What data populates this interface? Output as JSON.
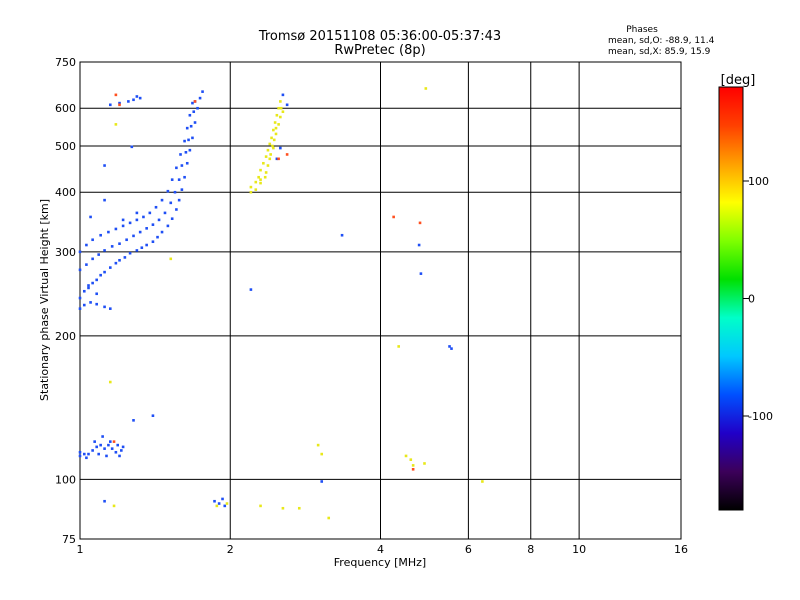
{
  "chart_data": {
    "type": "scatter",
    "title": "Tromsø 20151108 05:36:00-05:37:43",
    "subtitle": "RwPretec (8p)",
    "xlabel": "Frequency [MHz]",
    "ylabel": "Stationary phase Virtual Height [km]",
    "x_scale": "log",
    "y_scale": "log",
    "xlim": [
      1,
      16
    ],
    "ylim": [
      75,
      750
    ],
    "x_ticks": [
      1,
      2,
      4,
      6,
      8,
      10,
      16
    ],
    "y_ticks": [
      75,
      100,
      200,
      300,
      400,
      500,
      600,
      750
    ],
    "x_gridlines": [
      2,
      4,
      6,
      8,
      10
    ],
    "y_gridlines": [
      100,
      200,
      300,
      400,
      500,
      600
    ],
    "grid": true,
    "stats": {
      "header": "Phases",
      "line1": "mean, sd,O: -88.9, 11.4",
      "line2": "mean, sd,X:  85.9, 15.9"
    },
    "colorbar": {
      "label": "[deg]",
      "range": [
        -180,
        180
      ],
      "ticks": [
        -100,
        0,
        100
      ],
      "colors": [
        "#000000",
        "#3c005a",
        "#2000c8",
        "#0050ff",
        "#00c8ff",
        "#00ffc8",
        "#00e000",
        "#7fff00",
        "#ffff00",
        "#ffa000",
        "#ff4000",
        "#ff0000"
      ]
    },
    "series": [
      {
        "phase": -100,
        "color": "#1f4ff5",
        "points": [
          [
            1.0,
            240
          ],
          [
            1.02,
            248
          ],
          [
            1.04,
            252
          ],
          [
            1.06,
            258
          ],
          [
            1.08,
            262
          ],
          [
            1.1,
            268
          ],
          [
            1.12,
            272
          ],
          [
            1.15,
            278
          ],
          [
            1.18,
            284
          ],
          [
            1.2,
            288
          ],
          [
            1.23,
            292
          ],
          [
            1.26,
            298
          ],
          [
            1.3,
            302
          ],
          [
            1.33,
            306
          ],
          [
            1.36,
            310
          ],
          [
            1.4,
            315
          ],
          [
            1.43,
            322
          ],
          [
            1.46,
            330
          ],
          [
            1.5,
            340
          ],
          [
            1.53,
            352
          ],
          [
            1.56,
            368
          ],
          [
            1.58,
            385
          ],
          [
            1.6,
            405
          ],
          [
            1.62,
            430
          ],
          [
            1.64,
            460
          ],
          [
            1.66,
            490
          ],
          [
            1.68,
            520
          ],
          [
            1.7,
            560
          ],
          [
            1.72,
            600
          ],
          [
            1.74,
            630
          ],
          [
            1.76,
            650
          ],
          [
            1.0,
            275
          ],
          [
            1.03,
            282
          ],
          [
            1.06,
            290
          ],
          [
            1.09,
            296
          ],
          [
            1.12,
            302
          ],
          [
            1.16,
            308
          ],
          [
            1.2,
            312
          ],
          [
            1.24,
            318
          ],
          [
            1.28,
            324
          ],
          [
            1.32,
            330
          ],
          [
            1.36,
            336
          ],
          [
            1.4,
            342
          ],
          [
            1.44,
            350
          ],
          [
            1.48,
            362
          ],
          [
            1.52,
            380
          ],
          [
            1.55,
            400
          ],
          [
            1.58,
            425
          ],
          [
            1.6,
            455
          ],
          [
            1.63,
            485
          ],
          [
            1.65,
            515
          ],
          [
            1.67,
            550
          ],
          [
            1.69,
            590
          ],
          [
            1.7,
            620
          ],
          [
            1.0,
            300
          ],
          [
            1.03,
            310
          ],
          [
            1.06,
            318
          ],
          [
            1.1,
            325
          ],
          [
            1.14,
            330
          ],
          [
            1.18,
            335
          ],
          [
            1.22,
            340
          ],
          [
            1.26,
            345
          ],
          [
            1.3,
            350
          ],
          [
            1.34,
            355
          ],
          [
            1.38,
            362
          ],
          [
            1.42,
            372
          ],
          [
            1.46,
            385
          ],
          [
            1.5,
            402
          ],
          [
            1.53,
            425
          ],
          [
            1.56,
            450
          ],
          [
            1.59,
            480
          ],
          [
            1.62,
            512
          ],
          [
            1.64,
            545
          ],
          [
            1.66,
            580
          ],
          [
            1.68,
            615
          ],
          [
            1.0,
            228
          ],
          [
            1.02,
            232
          ],
          [
            1.05,
            235
          ],
          [
            1.08,
            233
          ],
          [
            1.12,
            230
          ],
          [
            1.15,
            228
          ],
          [
            1.04,
            255
          ],
          [
            1.08,
            245
          ],
          [
            1.0,
            112
          ],
          [
            1.02,
            113
          ],
          [
            1.04,
            113
          ],
          [
            1.06,
            115
          ],
          [
            1.08,
            117
          ],
          [
            1.1,
            118
          ],
          [
            1.12,
            116
          ],
          [
            1.14,
            118
          ],
          [
            1.16,
            116
          ],
          [
            1.18,
            114
          ],
          [
            1.2,
            112
          ],
          [
            1.21,
            115
          ],
          [
            1.0,
            114
          ],
          [
            1.03,
            111
          ],
          [
            1.07,
            120
          ],
          [
            1.11,
            123
          ],
          [
            1.15,
            120
          ],
          [
            1.19,
            118
          ],
          [
            1.22,
            117
          ],
          [
            1.13,
            112
          ],
          [
            1.09,
            113
          ],
          [
            1.15,
            610
          ],
          [
            1.2,
            615
          ],
          [
            1.28,
            625
          ],
          [
            1.3,
            635
          ],
          [
            1.25,
            620
          ],
          [
            1.32,
            630
          ],
          [
            1.27,
            498
          ],
          [
            1.12,
            455
          ],
          [
            1.12,
            385
          ],
          [
            1.05,
            355
          ],
          [
            1.22,
            350
          ],
          [
            1.3,
            362
          ],
          [
            1.12,
            90
          ],
          [
            1.4,
            136
          ],
          [
            1.28,
            133
          ],
          [
            1.86,
            90
          ],
          [
            1.9,
            89
          ],
          [
            1.93,
            91
          ],
          [
            1.95,
            88
          ],
          [
            2.2,
            250
          ],
          [
            2.55,
            640
          ],
          [
            2.6,
            610
          ],
          [
            2.48,
            470
          ],
          [
            2.52,
            495
          ],
          [
            3.05,
            99
          ],
          [
            3.35,
            325
          ],
          [
            4.78,
            310
          ],
          [
            4.82,
            270
          ],
          [
            5.5,
            190
          ],
          [
            5.55,
            188
          ]
        ]
      },
      {
        "phase": 100,
        "color": "#e8e81a",
        "points": [
          [
            2.2,
            410
          ],
          [
            2.25,
            420
          ],
          [
            2.28,
            430
          ],
          [
            2.3,
            445
          ],
          [
            2.33,
            460
          ],
          [
            2.36,
            475
          ],
          [
            2.38,
            490
          ],
          [
            2.4,
            505
          ],
          [
            2.42,
            520
          ],
          [
            2.44,
            540
          ],
          [
            2.46,
            560
          ],
          [
            2.48,
            580
          ],
          [
            2.5,
            600
          ],
          [
            2.52,
            620
          ],
          [
            2.2,
            400
          ],
          [
            2.25,
            405
          ],
          [
            2.3,
            418
          ],
          [
            2.35,
            430
          ],
          [
            2.38,
            455
          ],
          [
            2.41,
            480
          ],
          [
            2.43,
            500
          ],
          [
            2.45,
            515
          ],
          [
            2.47,
            530
          ],
          [
            2.5,
            555
          ],
          [
            2.52,
            575
          ],
          [
            2.53,
            600
          ],
          [
            2.4,
            470
          ],
          [
            2.36,
            440
          ],
          [
            2.3,
            425
          ],
          [
            2.44,
            495
          ],
          [
            2.47,
            545
          ],
          [
            2.55,
            590
          ],
          [
            4.35,
            190
          ],
          [
            4.5,
            112
          ],
          [
            4.6,
            110
          ],
          [
            4.65,
            107
          ],
          [
            4.9,
            108
          ],
          [
            4.93,
            660
          ],
          [
            2.3,
            88
          ],
          [
            2.55,
            87
          ],
          [
            2.75,
            87
          ],
          [
            3.0,
            118
          ],
          [
            3.15,
            83
          ],
          [
            1.52,
            290
          ],
          [
            1.15,
            160
          ],
          [
            1.18,
            555
          ],
          [
            1.17,
            88
          ],
          [
            6.4,
            99
          ],
          [
            1.88,
            88
          ],
          [
            1.97,
            89
          ],
          [
            3.05,
            113
          ]
        ]
      },
      {
        "phase": 150,
        "color": "#ff5020",
        "points": [
          [
            4.8,
            345
          ],
          [
            4.25,
            355
          ],
          [
            4.65,
            105
          ],
          [
            1.17,
            120
          ],
          [
            2.5,
            470
          ],
          [
            2.6,
            480
          ],
          [
            1.7,
            620
          ],
          [
            1.2,
            610
          ],
          [
            1.18,
            640
          ]
        ]
      }
    ]
  }
}
